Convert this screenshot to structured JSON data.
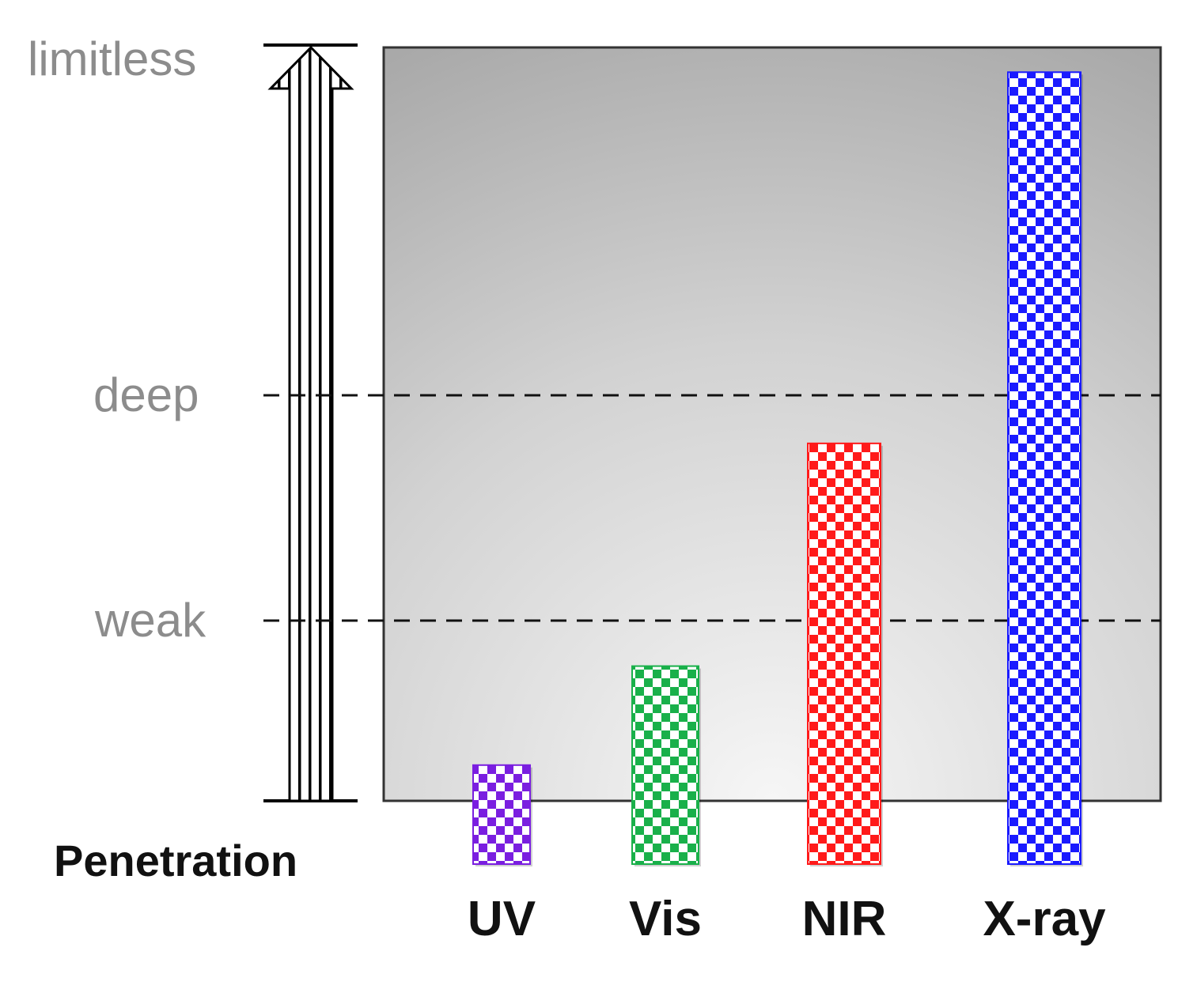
{
  "chart_data": {
    "type": "bar",
    "ylabel": "Penetration",
    "levels": [
      "weak",
      "deep",
      "limitless"
    ],
    "categories": [
      "UV",
      "Vis",
      "NIR",
      "X-ray"
    ],
    "values": [
      0.4,
      0.8,
      1.7,
      3.2
    ],
    "colors": [
      "#7a1ee0",
      "#19b04a",
      "#ff1a1a",
      "#1a1aff"
    ],
    "ylim": [
      0,
      3.3
    ]
  }
}
